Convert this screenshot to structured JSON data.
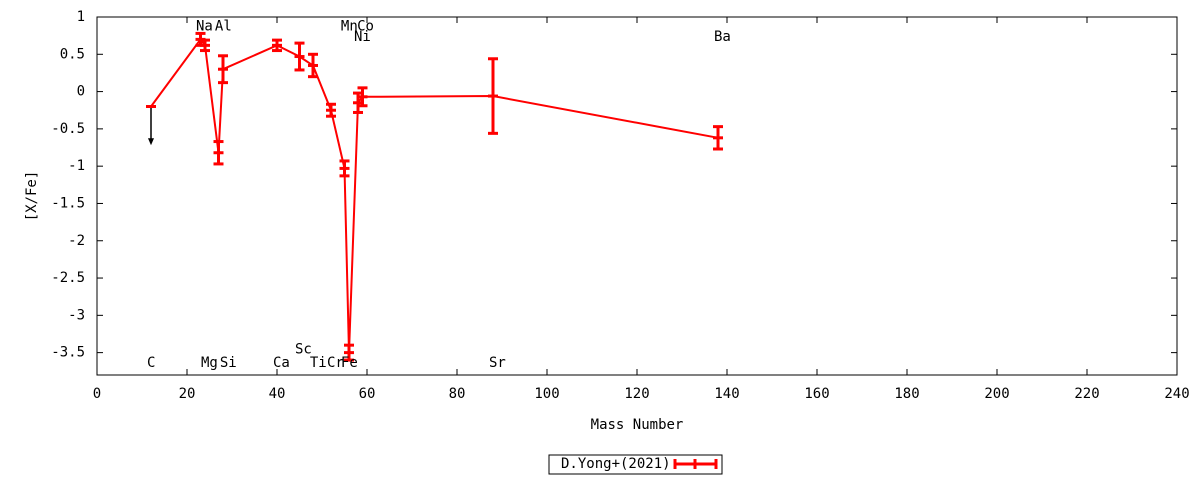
{
  "chart_data": {
    "type": "errorbar-line",
    "xlabel": "Mass Number",
    "ylabel": "[X/Fe]",
    "xlim": [
      0,
      240
    ],
    "ylim": [
      -3.8,
      1
    ],
    "xticks": [
      0,
      20,
      40,
      60,
      80,
      100,
      120,
      140,
      160,
      180,
      200,
      220,
      240
    ],
    "yticks": [
      1,
      0.5,
      0,
      -0.5,
      -1,
      -1.5,
      -2,
      -2.5,
      -3,
      -3.5
    ],
    "series": [
      {
        "name": "D.Yong+(2021)",
        "color": "#ff0000",
        "x": [
          12,
          23,
          24,
          27,
          28,
          40,
          45,
          48,
          52,
          55,
          56,
          58,
          59,
          88,
          138
        ],
        "values": [
          -0.2,
          0.7,
          0.62,
          -0.82,
          0.3,
          0.62,
          0.47,
          0.35,
          -0.25,
          -1.03,
          -3.5,
          -0.15,
          -0.07,
          -0.06,
          -0.62
        ],
        "errors": [
          null,
          0.08,
          0.07,
          0.15,
          0.18,
          0.07,
          0.18,
          0.15,
          0.08,
          0.1,
          0.1,
          0.13,
          0.12,
          0.5,
          0.15
        ]
      }
    ],
    "upper_limit_arrows": [
      {
        "x": 12,
        "from": -0.2,
        "to": -0.72,
        "color": "#000000"
      }
    ],
    "annotations": [
      {
        "text": "Na",
        "x": 22,
        "y": 0.87
      },
      {
        "text": "Al",
        "x": 26.2,
        "y": 0.87
      },
      {
        "text": "Mn",
        "x": 54.2,
        "y": 0.87
      },
      {
        "text": "Co",
        "x": 57.8,
        "y": 0.87
      },
      {
        "text": "Ni",
        "x": 57.1,
        "y": 0.73
      },
      {
        "text": "Ba",
        "x": 137.1,
        "y": 0.73
      },
      {
        "text": "C",
        "x": 11.1,
        "y": -3.64
      },
      {
        "text": "Mg",
        "x": 23.1,
        "y": -3.64
      },
      {
        "text": "Si",
        "x": 27.3,
        "y": -3.64
      },
      {
        "text": "Ca",
        "x": 39.1,
        "y": -3.64
      },
      {
        "text": "Sc",
        "x": 44,
        "y": -3.46
      },
      {
        "text": "Ti",
        "x": 47.3,
        "y": -3.64
      },
      {
        "text": "Cr",
        "x": 51.1,
        "y": -3.64
      },
      {
        "text": "Fe",
        "x": 54.2,
        "y": -3.64
      },
      {
        "text": "Sr",
        "x": 87.1,
        "y": -3.64
      }
    ],
    "legend": "bottom-center",
    "grid": false
  }
}
